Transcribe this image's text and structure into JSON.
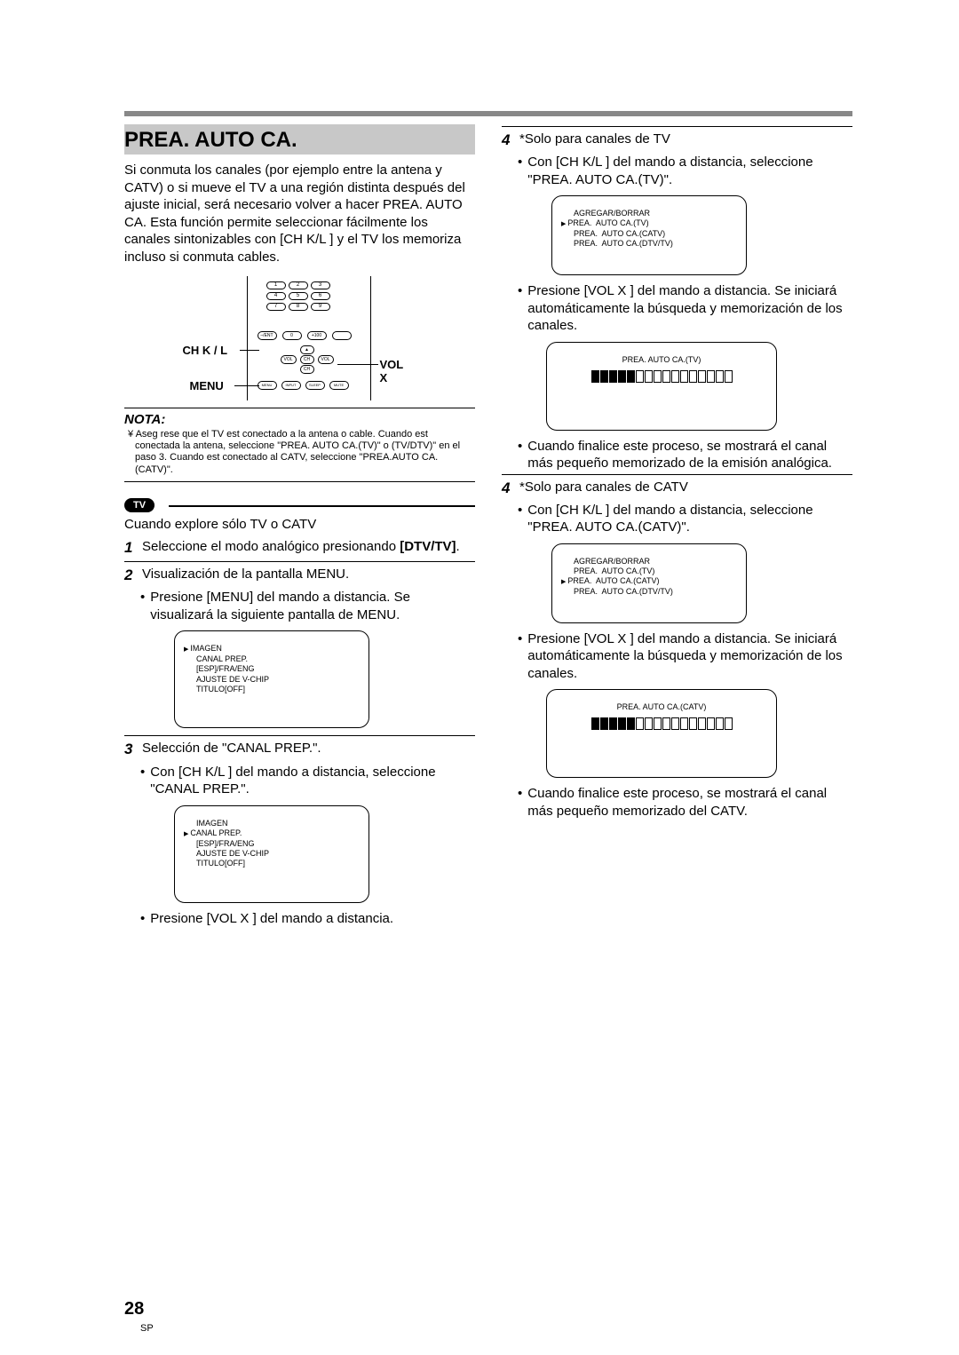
{
  "header": {
    "title": "PREA. AUTO CA."
  },
  "intro": "Si conmuta los canales (por ejemplo entre la antena y CATV) o si mueve el TV a una región distinta después del ajuste inicial, será necesario volver a hacer PREA. AUTO CA. Esta función permite seleccionar fácilmente los canales sintonizables con [CH K/L ] y el TV los memoriza incluso si conmuta cables.",
  "remote": {
    "ch_label": "CH K / L",
    "menu_label": "MENU",
    "vol_label": "VOL X",
    "keys": [
      "1",
      "2",
      "3",
      "4",
      "5",
      "6",
      "7",
      "8",
      "9"
    ],
    "mid": [
      "–/ENT",
      "0",
      "+100",
      ""
    ],
    "nav": {
      "up": "▲",
      "down": "CH",
      "left": "VOL",
      "right": "VOL",
      "mid": "CH"
    },
    "bottom": [
      "MENU",
      "INPUT",
      "SLEEP",
      "MUTE"
    ],
    "ch_return": "CHANNEL RETURN"
  },
  "nota": {
    "title": "NOTA:",
    "text": "¥ Aseg rese que el TV est  conectado a la antena o cable. Cuando est  conectada la antena, seleccione \"PREA. AUTO CA.(TV)\" o (TV/DTV)\" en el paso 3. Cuando est  conectado al CATV, seleccione \"PREA.AUTO CA.(CATV)\"."
  },
  "tv_badge": "TV",
  "explore_text": "Cuando explore sólo TV o CATV",
  "step1": {
    "num": "1",
    "text_a": "Seleccione el modo analógico presionando ",
    "text_b": "[DTV/TV]",
    "text_c": "."
  },
  "step2": {
    "num": "2",
    "text": "Visualización de la pantalla MENU.",
    "bullet": "Presione [MENU] del mando a distancia. Se visualizará la siguiente pantalla de MENU."
  },
  "menu_screen1": {
    "lines": [
      "IMAGEN",
      "CANAL PREP.",
      "[ESP]/FRA/ENG",
      "AJUSTE DE V-CHIP",
      "TITULO[OFF]"
    ],
    "arrow_index": 0
  },
  "step3": {
    "num": "3",
    "text": "Selección de \"CANAL PREP.\".",
    "bullet1": "Con [CH K/L ] del mando a distancia, seleccione \"CANAL PREP.\".",
    "bullet2": "Presione [VOL X ] del mando a distancia."
  },
  "menu_screen2": {
    "lines": [
      "IMAGEN",
      "CANAL PREP.",
      "[ESP]/FRA/ENG",
      "AJUSTE DE V-CHIP",
      "TITULO[OFF]"
    ],
    "arrow_index": 1
  },
  "step4tv": {
    "num": "4",
    "head": "*Solo para canales de TV",
    "bullet1": "Con [CH K/L ] del mando a distancia, seleccione \"PREA. AUTO CA.(TV)\".",
    "bullet2": "Presione [VOL X ] del mando a distancia. Se iniciará automáticamente la búsqueda y memorización de los canales.",
    "bullet3": "Cuando finalice este proceso, se mostrará el canal más pequeño memorizado de la emisión analógica."
  },
  "channel_menu_tv": {
    "lines": [
      "AGREGAR/BORRAR",
      "PREA.  AUTO CA.(TV)",
      "PREA.  AUTO CA.(CATV)",
      "PREA.  AUTO CA.(DTV/TV)"
    ],
    "arrow_index": 1
  },
  "progress_tv": {
    "title": "PREA.  AUTO CA.(TV)",
    "filled": 5,
    "total": 16
  },
  "step4catv": {
    "num": "4",
    "head": "*Solo para canales de CATV",
    "bullet1": "Con [CH K/L ] del mando a distancia, seleccione \"PREA. AUTO CA.(CATV)\".",
    "bullet2": "Presione [VOL X ] del mando a distancia. Se iniciará automáticamente la búsqueda y memorización de los canales.",
    "bullet3": "Cuando finalice este proceso, se mostrará el canal más pequeño memorizado del CATV."
  },
  "channel_menu_catv": {
    "lines": [
      "AGREGAR/BORRAR",
      "PREA.  AUTO CA.(TV)",
      "PREA.  AUTO CA.(CATV)",
      "PREA.  AUTO CA.(DTV/TV)"
    ],
    "arrow_index": 2
  },
  "progress_catv": {
    "title": "PREA.  AUTO CA.(CATV)",
    "filled": 5,
    "total": 16
  },
  "page": {
    "num": "28",
    "sp": "SP"
  }
}
